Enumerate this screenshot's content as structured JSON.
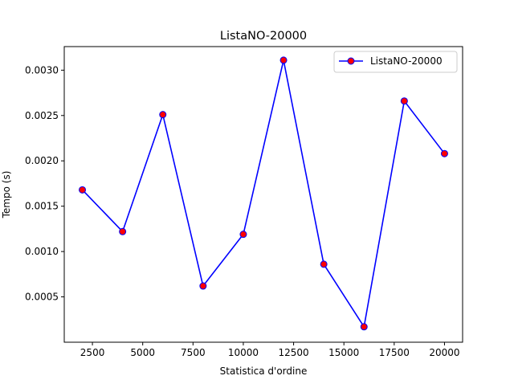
{
  "chart_data": {
    "type": "line",
    "title": "ListaNO-20000",
    "xlabel": "Statistica d'ordine",
    "ylabel": "Tempo (s)",
    "x": [
      2000,
      4000,
      6000,
      8000,
      10000,
      12000,
      14000,
      16000,
      18000,
      20000
    ],
    "series": [
      {
        "name": "ListaNO-20000",
        "values": [
          0.00168,
          0.00122,
          0.00251,
          0.00062,
          0.00119,
          0.00311,
          0.00086,
          0.00017,
          0.00266,
          0.00208
        ],
        "line_color": "#0000ff",
        "marker_face_color": "#ff0000",
        "marker_edge_color": "#0000ff",
        "marker": "circle"
      }
    ],
    "xticks": [
      2500,
      5000,
      7500,
      10000,
      12500,
      15000,
      17500,
      20000
    ],
    "xtick_labels": [
      "2500",
      "5000",
      "7500",
      "10000",
      "12500",
      "15000",
      "17500",
      "20000"
    ],
    "yticks": [
      0.0005,
      0.001,
      0.0015,
      0.002,
      0.0025,
      0.003
    ],
    "ytick_labels": [
      "0.0005",
      "0.0010",
      "0.0015",
      "0.0020",
      "0.0025",
      "0.0030"
    ],
    "xlim": [
      1100,
      20900
    ],
    "ylim": [
      0.0,
      0.00326
    ],
    "grid": false,
    "legend_position": "top-right"
  }
}
